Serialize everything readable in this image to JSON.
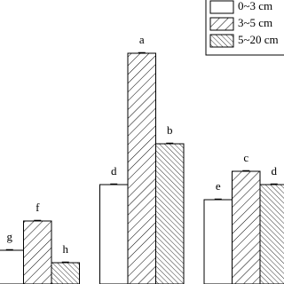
{
  "chart_data": {
    "type": "bar",
    "categories": [
      null,
      null,
      null
    ],
    "ylim": [
      0,
      320
    ],
    "legend": "upper right",
    "series": [
      {
        "name": "0~3 cm",
        "color": "#ffffff",
        "hatch": "none",
        "values": [
          38,
          112,
          95
        ],
        "labels": [
          "g",
          "d",
          "e"
        ]
      },
      {
        "name": "3~5 cm",
        "color": "#ffffff",
        "hatch": "forward",
        "values": [
          71,
          260,
          127
        ],
        "labels": [
          "f",
          "a",
          "c"
        ]
      },
      {
        "name": "5~20 cm",
        "color": "#ffffff",
        "hatch": "back",
        "values": [
          24,
          158,
          112
        ],
        "labels": [
          "h",
          "b",
          "d"
        ]
      }
    ]
  }
}
